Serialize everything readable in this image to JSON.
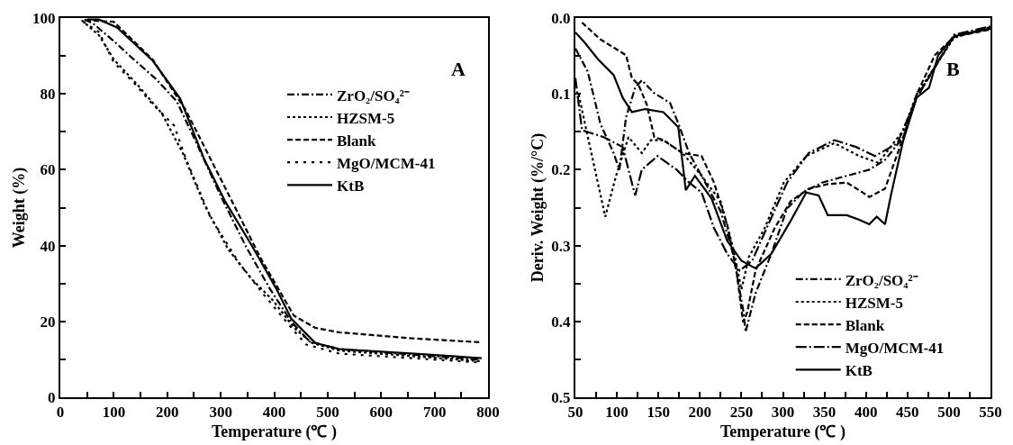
{
  "chart_data": [
    {
      "type": "line",
      "annotations": [
        "A"
      ],
      "xlabel": "Temperature (℃ )",
      "ylabel": "Weight (%)",
      "xlim": [
        0,
        800
      ],
      "xticks": [
        0,
        {
          "value": 50,
          "label": null
        },
        100,
        {
          "value": 150,
          "label": null
        },
        200,
        {
          "value": 250,
          "label": null
        },
        300,
        {
          "value": 350,
          "label": null
        },
        400,
        {
          "value": 450,
          "label": null
        },
        500,
        {
          "value": 550,
          "label": null
        },
        600,
        {
          "value": 650,
          "label": null
        },
        700,
        {
          "value": 750,
          "label": null
        },
        800
      ],
      "ylim": [
        0,
        100
      ],
      "yticks": [
        0,
        {
          "value": 10,
          "label": null
        },
        20,
        {
          "value": 30,
          "label": null
        },
        40,
        {
          "value": 50,
          "label": null
        },
        60,
        {
          "value": 70,
          "label": null
        },
        80,
        {
          "value": 90,
          "label": null
        },
        100
      ],
      "legend": "top right",
      "series": [
        {
          "name": "ZrO₂/SO₄²⁻",
          "color": "#000000",
          "line_style": "dashdot",
          "x": [
            45,
            61,
            100,
            134,
            179,
            218,
            258,
            302,
            347,
            392,
            432,
            466,
            522,
            784
          ],
          "values": [
            99.6,
            98.6,
            93.9,
            89.5,
            83.9,
            78,
            66,
            52.5,
            39.8,
            28.6,
            19.9,
            14.7,
            12.7,
            9.9
          ]
        },
        {
          "name": "HZSM-5",
          "color": "#000000",
          "line_style": "dotted",
          "x": [
            40,
            72,
            100,
            145,
            190,
            229,
            269,
            314,
            359,
            398,
            437,
            471,
            522,
            786
          ],
          "values": [
            99.4,
            95.5,
            89.1,
            82.3,
            74.8,
            64.4,
            50.9,
            39,
            31,
            25.5,
            18.3,
            14.3,
            12.3,
            9.5
          ]
        },
        {
          "name": "Blank",
          "color": "#000000",
          "line_style": "dashed",
          "x": [
            47,
            100,
            173,
            235,
            302,
            375,
            437,
            477,
            522,
            662,
            787
          ],
          "values": [
            99.4,
            99,
            89,
            75.6,
            57,
            36.6,
            21.5,
            18.3,
            17.1,
            15.5,
            14.5
          ]
        },
        {
          "name": "MgO/MCM-41",
          "color": "#000000",
          "line_style": "loosely_dotted",
          "x": [
            43,
            72,
            100,
            139,
            168,
            213,
            235,
            280,
            336,
            381,
            437,
            460,
            522,
            782
          ],
          "values": [
            99.0,
            96.3,
            88.3,
            82.7,
            78,
            71.6,
            62.8,
            47.7,
            35,
            27,
            17.5,
            13.9,
            11.5,
            9.2
          ]
        },
        {
          "name": "KtB",
          "color": "#000000",
          "line_style": "solid",
          "x": [
            50,
            72,
            106,
            173,
            224,
            269,
            308,
            359,
            404,
            432,
            477,
            522,
            662,
            788
          ],
          "values": [
            99.6,
            99.6,
            97.5,
            88.7,
            78.8,
            62.8,
            51.7,
            39.8,
            28.6,
            20.7,
            14.3,
            12.7,
            11.5,
            10.3
          ]
        }
      ]
    },
    {
      "type": "line",
      "annotations": [
        "B"
      ],
      "xlabel": "Temperature (℃ )",
      "ylabel": "Deriv. Weight (%/°C)",
      "xlim": [
        50,
        550
      ],
      "xticks": [
        50,
        {
          "value": 75,
          "label": null
        },
        100,
        {
          "value": 125,
          "label": null
        },
        150,
        {
          "value": 175,
          "label": null
        },
        200,
        {
          "value": 225,
          "label": null
        },
        250,
        {
          "value": 275,
          "label": null
        },
        300,
        {
          "value": 325,
          "label": null
        },
        350,
        {
          "value": 375,
          "label": null
        },
        400,
        {
          "value": 425,
          "label": null
        },
        450,
        {
          "value": 475,
          "label": null
        },
        500,
        {
          "value": 525,
          "label": null
        },
        550
      ],
      "ylim": [
        0.5,
        0.0
      ],
      "yticks": [
        {
          "value": 0,
          "label": "0.0"
        },
        {
          "value": 0.05,
          "label": null
        },
        {
          "value": 0.1,
          "label": "0.1"
        },
        {
          "value": 0.15,
          "label": null
        },
        {
          "value": 0.2,
          "label": "0.2"
        },
        {
          "value": 0.25,
          "label": null
        },
        {
          "value": 0.3,
          "label": "0.3"
        },
        {
          "value": 0.35,
          "label": null
        },
        {
          "value": 0.4,
          "label": "0.4"
        },
        {
          "value": 0.45,
          "label": null
        },
        {
          "value": 0.5,
          "label": "0.5"
        }
      ],
      "legend": "bottom right",
      "series": [
        {
          "name": "ZrO₂/SO₄²⁻",
          "color": "#000000",
          "line_style": "dashdot",
          "x": [
            50,
            65,
            80,
            96,
            103,
            111,
            122,
            130,
            145,
            164,
            174,
            187,
            202,
            225,
            240,
            252,
            255,
            267,
            286,
            305,
            324,
            347,
            377,
            404,
            423,
            445,
            461,
            506,
            550
          ],
          "values": [
            0.04,
            0.071,
            0.139,
            0.178,
            0.2,
            0.131,
            0.092,
            0.082,
            0.099,
            0.112,
            0.139,
            0.178,
            0.208,
            0.255,
            0.311,
            0.384,
            0.414,
            0.363,
            0.311,
            0.251,
            0.23,
            0.217,
            0.208,
            0.2,
            0.187,
            0.157,
            0.105,
            0.024,
            0.013
          ]
        },
        {
          "name": "HZSM-5",
          "color": "#000000",
          "line_style": "dotted",
          "x": [
            54,
            65,
            77,
            86,
            99,
            114,
            130,
            141,
            156,
            179,
            202,
            225,
            240,
            250,
            259,
            278,
            301,
            328,
            362,
            392,
            415,
            445,
            461,
            506,
            550
          ],
          "values": [
            0.101,
            0.157,
            0.217,
            0.262,
            0.208,
            0.157,
            0.178,
            0.161,
            0.161,
            0.178,
            0.208,
            0.242,
            0.303,
            0.358,
            0.315,
            0.277,
            0.217,
            0.182,
            0.165,
            0.182,
            0.191,
            0.148,
            0.101,
            0.026,
            0.012
          ]
        },
        {
          "name": "Blank",
          "color": "#000000",
          "line_style": "dashed",
          "x": [
            58,
            80,
            111,
            118,
            126,
            136,
            145,
            156,
            179,
            202,
            217,
            233,
            244,
            252,
            257,
            267,
            290,
            309,
            331,
            354,
            377,
            396,
            404,
            423,
            445,
            461,
            483,
            506,
            550
          ],
          "values": [
            0.006,
            0.028,
            0.049,
            0.079,
            0.088,
            0.114,
            0.157,
            0.161,
            0.178,
            0.182,
            0.217,
            0.273,
            0.333,
            0.401,
            0.388,
            0.333,
            0.277,
            0.242,
            0.225,
            0.219,
            0.217,
            0.23,
            0.236,
            0.225,
            0.157,
            0.101,
            0.049,
            0.025,
            0.015
          ]
        },
        {
          "name": "MgO/MCM-41",
          "color": "#000000",
          "line_style": "longdashdot",
          "x": [
            50,
            58,
            84,
            107,
            114,
            122,
            130,
            149,
            172,
            187,
            202,
            217,
            233,
            248,
            263,
            282,
            305,
            331,
            362,
            388,
            411,
            438,
            461,
            506,
            550
          ],
          "values": [
            0.079,
            0.148,
            0.157,
            0.17,
            0.2,
            0.234,
            0.2,
            0.182,
            0.2,
            0.217,
            0.23,
            0.277,
            0.311,
            0.333,
            0.32,
            0.273,
            0.217,
            0.178,
            0.161,
            0.17,
            0.182,
            0.165,
            0.105,
            0.022,
            0.011
          ]
        },
        {
          "name": "KtB",
          "color": "#000000",
          "line_style": "solid",
          "x": [
            50,
            61,
            77,
            96,
            107,
            118,
            134,
            156,
            174,
            183,
            194,
            214,
            233,
            250,
            267,
            286,
            309,
            328,
            343,
            354,
            377,
            392,
            404,
            413,
            423,
            430,
            445,
            461,
            476,
            487,
            506,
            550
          ],
          "values": [
            0.019,
            0.032,
            0.054,
            0.075,
            0.105,
            0.124,
            0.12,
            0.124,
            0.144,
            0.227,
            0.208,
            0.238,
            0.294,
            0.32,
            0.33,
            0.311,
            0.268,
            0.23,
            0.234,
            0.26,
            0.26,
            0.266,
            0.272,
            0.262,
            0.272,
            0.234,
            0.161,
            0.105,
            0.092,
            0.049,
            0.024,
            0.014
          ]
        }
      ]
    }
  ]
}
